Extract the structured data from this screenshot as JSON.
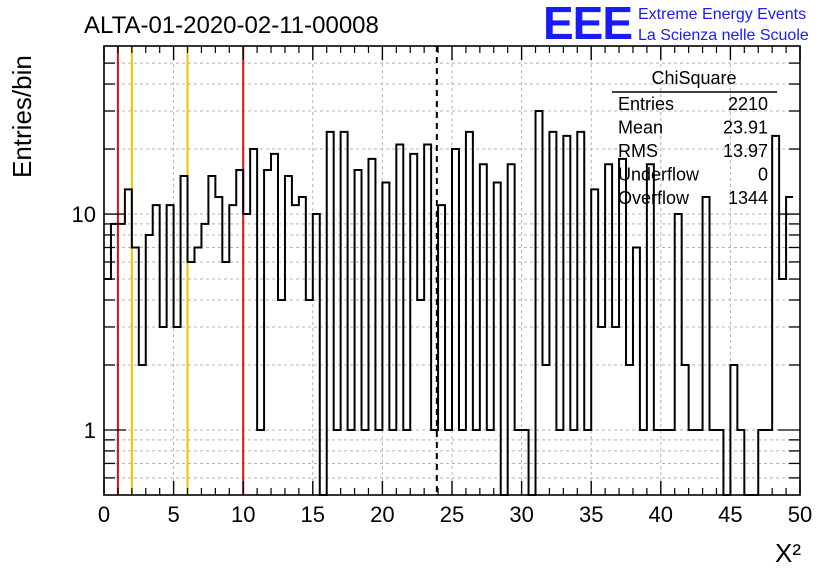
{
  "header": {
    "run_title": "ALTA-01-2020-02-11-00008",
    "logo_letters": "EEE",
    "logo_line1": "Extreme Energy Events",
    "logo_line2": "La Scienza nelle Scuole"
  },
  "stats_box": {
    "title": "ChiSquare",
    "rows": [
      {
        "label": "Entries",
        "value": "2210"
      },
      {
        "label": "Mean",
        "value": "23.91"
      },
      {
        "label": "RMS",
        "value": "13.97"
      },
      {
        "label": "Underflow",
        "value": "0"
      },
      {
        "label": "Overflow",
        "value": "1344"
      }
    ]
  },
  "colors": {
    "histogram": "#000000",
    "red_line": "#dd1111",
    "yellow_line": "#f2c200",
    "grid": "#b4b4b4",
    "logo": "#1a1aff"
  },
  "chart_data": {
    "type": "histogram",
    "title": "",
    "xlabel": "X²",
    "ylabel": "Entries/bin",
    "x_range": [
      0,
      50
    ],
    "y_range": [
      0.5,
      60
    ],
    "y_scale": "log",
    "bin_width": 0.5,
    "grid": true,
    "x_ticks": [
      0,
      5,
      10,
      15,
      20,
      25,
      30,
      35,
      40,
      45,
      50
    ],
    "x_tick_labels": [
      "0",
      "5",
      "10",
      "15",
      "20",
      "25",
      "30",
      "35",
      "40",
      "45",
      "50"
    ],
    "y_tick_labels": [
      {
        "value": 1,
        "label": "1"
      },
      {
        "value": 10,
        "label": "10"
      }
    ],
    "y_grid_values": [
      0.6,
      0.7,
      0.8,
      0.9,
      1,
      2,
      3,
      4,
      5,
      6,
      7,
      8,
      9,
      10,
      20,
      30,
      40,
      50
    ],
    "values": [
      5,
      9,
      9,
      13,
      7,
      2,
      8,
      11,
      3,
      11,
      3,
      15,
      6,
      7,
      9,
      15,
      12,
      6,
      11,
      16,
      10,
      20,
      1,
      16,
      19,
      4,
      15,
      11,
      12,
      4,
      10,
      0,
      24,
      1,
      24,
      1,
      16,
      1,
      18,
      1,
      14,
      1,
      21,
      1,
      19,
      4,
      21,
      1,
      11,
      1,
      20,
      1,
      24,
      1,
      17,
      1,
      14,
      0,
      17,
      1,
      1,
      0,
      30,
      2,
      24,
      1,
      23,
      1,
      24,
      1,
      13,
      3,
      17,
      3,
      18,
      2,
      7,
      1,
      17,
      1,
      1,
      1,
      10,
      2,
      1,
      1,
      12,
      1,
      1,
      0,
      2,
      1,
      0,
      0,
      1,
      1,
      23,
      5,
      12
    ],
    "vertical_lines": [
      {
        "x": 1,
        "color": "red",
        "style": "solid"
      },
      {
        "x": 10,
        "color": "red",
        "style": "solid"
      },
      {
        "x": 2,
        "color": "yellow",
        "style": "solid"
      },
      {
        "x": 6,
        "color": "yellow",
        "style": "solid"
      },
      {
        "x": 23.91,
        "color": "black",
        "style": "dashed"
      }
    ]
  }
}
